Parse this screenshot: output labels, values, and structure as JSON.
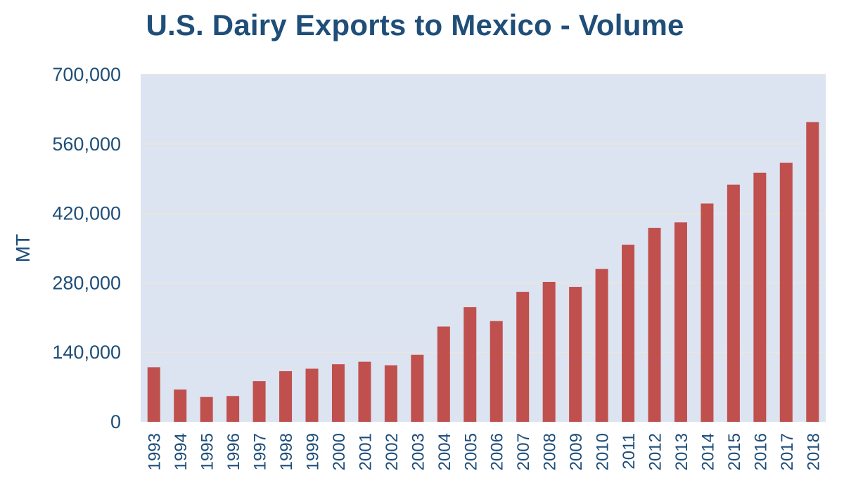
{
  "chart_data": {
    "type": "bar",
    "title": "U.S. Dairy Exports to Mexico - Volume",
    "xlabel": "",
    "ylabel": "MT",
    "ylim": [
      0,
      700000
    ],
    "yticks": [
      0,
      140000,
      280000,
      420000,
      560000,
      700000
    ],
    "ytick_labels": [
      "0",
      "140,000",
      "280,000",
      "420,000",
      "560,000",
      "700,000"
    ],
    "grid": true,
    "categories": [
      "1993",
      "1994",
      "1995",
      "1996",
      "1997",
      "1998",
      "1999",
      "2000",
      "2001",
      "2002",
      "2003",
      "2004",
      "2005",
      "2006",
      "2007",
      "2008",
      "2009",
      "2010",
      "2011",
      "2012",
      "2013",
      "2014",
      "2015",
      "2016",
      "2017",
      "2018"
    ],
    "values": [
      110000,
      65000,
      50000,
      52000,
      82000,
      102000,
      107000,
      116000,
      121000,
      114000,
      135000,
      192000,
      231000,
      203000,
      262000,
      282000,
      272000,
      308000,
      357000,
      391000,
      402000,
      440000,
      478000,
      502000,
      522000,
      604000
    ],
    "colors": {
      "bar": "#c0504d",
      "plot_background": "#dce3f1",
      "gridline": "#e9e6e1",
      "text": "#1f4e79"
    }
  }
}
